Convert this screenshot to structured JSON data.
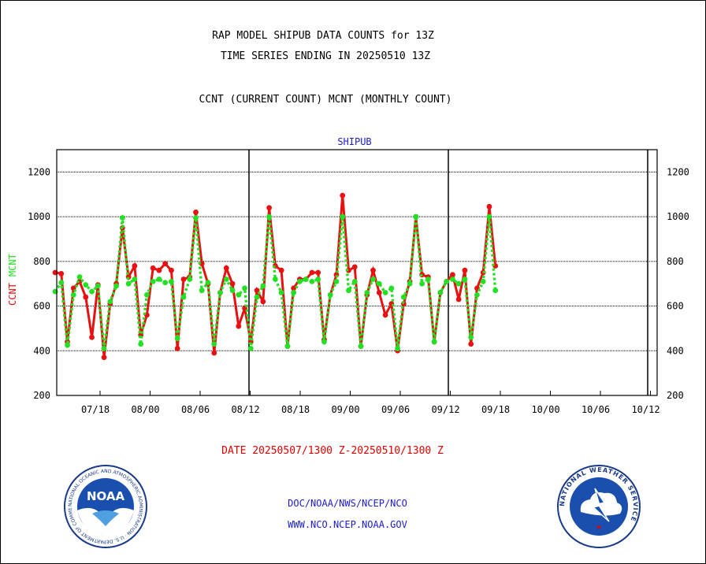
{
  "header": {
    "title1": "RAP MODEL SHIPUB DATA COUNTS for 13Z",
    "title2": "TIME SERIES ENDING IN 20250510 13Z",
    "subtitle": "CCNT (CURRENT COUNT) MCNT (MONTHLY COUNT)"
  },
  "footer": {
    "date_range": "DATE 20250507/1300 Z-20250510/1300 Z",
    "org": "DOC/NOAA/NWS/NCEP/NCO",
    "url": "WWW.NCO.NCEP.NOAA.GOV"
  },
  "logos": {
    "noaa_text": "NOAA",
    "noaa_ring": "NATIONAL OCEANIC AND ATMOSPHERIC ADMINISTRATION · U.S. DEPARTMENT OF COMMERCE",
    "nws_ring": "NATIONAL WEATHER SERVICE"
  },
  "colors": {
    "ccnt": "#e81010",
    "mcnt": "#22e022",
    "panel_title": "#1c1ccc"
  },
  "chart_data": {
    "type": "line",
    "title": "SHIPUB",
    "ylabel_parts": [
      "CCNT",
      "MCNT"
    ],
    "ylim": [
      200,
      1300
    ],
    "yticks": [
      200,
      400,
      600,
      800,
      1000,
      1200
    ],
    "grid": true,
    "x_tick_labels": [
      "07/18",
      "08/00",
      "08/06",
      "08/12",
      "08/18",
      "09/00",
      "09/06",
      "09/12",
      "09/18",
      "10/00",
      "10/06",
      "10/12"
    ],
    "day_boundaries": [
      "08/12",
      "09/12",
      "10/12"
    ],
    "series": [
      {
        "name": "CCNT",
        "values": [
          750,
          745,
          440,
          680,
          710,
          640,
          460,
          695,
          370,
          610,
          700,
          950,
          730,
          780,
          470,
          560,
          770,
          760,
          790,
          760,
          410,
          720,
          730,
          1020,
          790,
          700,
          390,
          660,
          770,
          700,
          510,
          590,
          440,
          670,
          620,
          1040,
          780,
          760,
          420,
          680,
          720,
          720,
          750,
          750,
          450,
          650,
          740,
          1095,
          760,
          775,
          420,
          650,
          760,
          660,
          560,
          610,
          400,
          610,
          710,
          1000,
          740,
          730,
          440,
          660,
          710,
          740,
          630,
          760,
          430,
          680,
          750,
          1045,
          780
        ]
      },
      {
        "name": "MCNT",
        "values": [
          665,
          705,
          425,
          650,
          730,
          695,
          665,
          690,
          410,
          620,
          690,
          995,
          700,
          720,
          430,
          650,
          710,
          720,
          705,
          710,
          455,
          640,
          720,
          995,
          670,
          705,
          430,
          660,
          720,
          670,
          650,
          680,
          410,
          640,
          690,
          1000,
          720,
          660,
          420,
          660,
          710,
          720,
          710,
          720,
          440,
          650,
          710,
          1000,
          670,
          710,
          420,
          660,
          720,
          700,
          660,
          680,
          410,
          640,
          700,
          1000,
          700,
          720,
          440,
          660,
          710,
          720,
          700,
          720,
          460,
          650,
          710,
          1000,
          670
        ]
      }
    ]
  }
}
